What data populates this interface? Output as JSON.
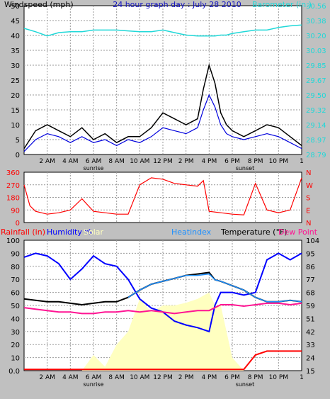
{
  "colors": {
    "background": "#c0c0c0",
    "plot_bg": "#ffffff",
    "grid": "#9a9a9a",
    "wind": "#000000",
    "gust": "#0000dd",
    "wind_gray": "#808080",
    "barometer": "#20d8d8",
    "direction": "#ff0000",
    "humidity": "#0000ff",
    "solar": "#ffffc0",
    "heatindex": "#1e90ff",
    "temperature": "#000000",
    "dewpoint": "#ff1493",
    "rainfall": "#ff0000"
  },
  "x_labels": [
    "2 AM",
    "4 AM",
    "6 AM",
    "8 AM",
    "10 AM",
    "12 PM",
    "2 PM",
    "4 PM",
    "6 PM",
    "8 PM",
    "10 PM"
  ],
  "x_hours": [
    2,
    4,
    6,
    8,
    10,
    12,
    14,
    16,
    18,
    20,
    22
  ],
  "sunrise_label": "sunrise",
  "sunset_label": "sunset",
  "sunrise_hour": 6,
  "sunset_hour": 19.1,
  "end_label": "1",
  "chart_data": [
    {
      "type": "line",
      "title": "24 hour graph day : July 28 2010",
      "ylabel_left": "Windspeed (mph)",
      "ylabel_right": "Barometer (in.)",
      "yticks_left": [
        "0",
        "5",
        "10",
        "15",
        "20",
        "25",
        "30",
        "35",
        "40",
        "45",
        "50"
      ],
      "yticks_right": [
        "28.79",
        "28.97",
        "29.14",
        "29.32",
        "29.50",
        "29.67",
        "29.85",
        "30.03",
        "30.20",
        "30.38",
        "30.56"
      ],
      "ylim_left": [
        0,
        50
      ],
      "ylim_right": [
        28.79,
        30.56
      ],
      "x": [
        0,
        1,
        2,
        3,
        4,
        5,
        6,
        7,
        8,
        9,
        10,
        11,
        12,
        13,
        14,
        15,
        15.5,
        16,
        16.5,
        17,
        17.5,
        18,
        19,
        20,
        21,
        22,
        23,
        24
      ],
      "series": [
        {
          "key": "wind",
          "values": [
            2,
            8,
            10,
            8,
            6,
            9,
            5,
            7,
            4,
            6,
            6,
            9,
            14,
            12,
            10,
            12,
            22,
            30,
            24,
            14,
            10,
            8,
            6,
            8,
            10,
            9,
            6,
            3
          ]
        },
        {
          "key": "gust",
          "values": [
            1,
            5,
            7,
            6,
            4,
            6,
            4,
            5,
            3,
            5,
            4,
            6,
            9,
            8,
            7,
            9,
            15,
            20,
            16,
            10,
            7,
            6,
            5,
            6,
            7,
            6,
            4,
            2
          ]
        },
        {
          "key": "barometer",
          "values": [
            30.29,
            30.25,
            30.2,
            30.24,
            30.25,
            30.25,
            30.27,
            30.27,
            30.27,
            30.26,
            30.25,
            30.25,
            30.27,
            30.24,
            30.21,
            30.2,
            30.2,
            30.2,
            30.2,
            30.21,
            30.21,
            30.23,
            30.25,
            30.27,
            30.27,
            30.3,
            30.32,
            30.33
          ]
        }
      ]
    },
    {
      "type": "line",
      "title": "",
      "yticks_left": [
        "0",
        "90",
        "180",
        "270",
        "360"
      ],
      "yticks_right": [
        "N",
        "E",
        "S",
        "W",
        "N"
      ],
      "ylim": [
        0,
        360
      ],
      "x": [
        0,
        0.5,
        1,
        2,
        3,
        4,
        5,
        6,
        7,
        8,
        9,
        10,
        11,
        12,
        13,
        14,
        15,
        15.5,
        16,
        17,
        18,
        19,
        20,
        21,
        22,
        23,
        24
      ],
      "series": [
        {
          "key": "direction",
          "values": [
            270,
            120,
            80,
            60,
            70,
            90,
            170,
            80,
            70,
            60,
            60,
            270,
            320,
            310,
            280,
            270,
            260,
            300,
            80,
            70,
            60,
            55,
            280,
            90,
            70,
            90,
            320
          ]
        }
      ]
    },
    {
      "type": "line",
      "title": "",
      "header": {
        "rainfall": "Rainfall (in)",
        "humidity": "Humidity %",
        "solar": "Solar",
        "heatindex": "Heatindex",
        "temperature": "Temperature (°F)",
        "dewpoint": "Dew Point"
      },
      "yticks_left": [
        "0.0",
        "10",
        "20",
        "30",
        "40",
        "50",
        "60",
        "70",
        "80",
        "90",
        "100"
      ],
      "yticks_right": [
        "15",
        "24",
        "33",
        "42",
        "51",
        "59",
        "68",
        "77",
        "86",
        "95",
        "104"
      ],
      "ylim_left": [
        0,
        100
      ],
      "ylim_right": [
        15,
        104
      ],
      "x": [
        0,
        1,
        2,
        3,
        4,
        5,
        6,
        7,
        8,
        9,
        10,
        11,
        12,
        13,
        14,
        15,
        16,
        16.5,
        17,
        18,
        19,
        20,
        21,
        22,
        23,
        24
      ],
      "series": [
        {
          "key": "humidity",
          "values": [
            87,
            90,
            88,
            82,
            70,
            78,
            88,
            82,
            80,
            70,
            55,
            48,
            45,
            38,
            35,
            33,
            30,
            50,
            60,
            60,
            58,
            60,
            85,
            90,
            85,
            90
          ]
        },
        {
          "key": "temperature",
          "values": [
            64,
            63,
            62,
            62,
            61,
            60,
            61,
            62,
            62,
            65,
            70,
            74,
            76,
            78,
            80,
            81,
            82,
            77,
            76,
            73,
            70,
            65,
            62,
            62,
            63,
            62
          ]
        },
        {
          "key": "heatindex",
          "values": [
            null,
            null,
            null,
            null,
            null,
            null,
            null,
            null,
            null,
            65,
            70,
            74,
            76,
            78,
            80,
            80,
            81,
            77,
            76,
            73,
            70,
            65,
            62,
            62,
            63,
            62
          ]
        },
        {
          "key": "dewpoint",
          "values": [
            58,
            57,
            56,
            55,
            55,
            54,
            54,
            55,
            55,
            56,
            55,
            56,
            55,
            54,
            55,
            56,
            56,
            58,
            60,
            60,
            59,
            60,
            61,
            61,
            60,
            61
          ]
        },
        {
          "key": "solar",
          "values": [
            0,
            0,
            0,
            0,
            0,
            0,
            12,
            3,
            20,
            30,
            55,
            45,
            50,
            50,
            52,
            55,
            60,
            50,
            50,
            10,
            0,
            0,
            0,
            0,
            0,
            0
          ]
        },
        {
          "key": "rainfall",
          "values": [
            0.01,
            0.01,
            0.01,
            0.01,
            0.01,
            0.01,
            0.01,
            0.01,
            0.01,
            0.01,
            0.01,
            0.01,
            0.01,
            0.01,
            0.01,
            0.01,
            0.01,
            0.01,
            0.01,
            0.01,
            0.01,
            0.12,
            0.15,
            0.15,
            0.15,
            0.15
          ]
        }
      ]
    }
  ]
}
